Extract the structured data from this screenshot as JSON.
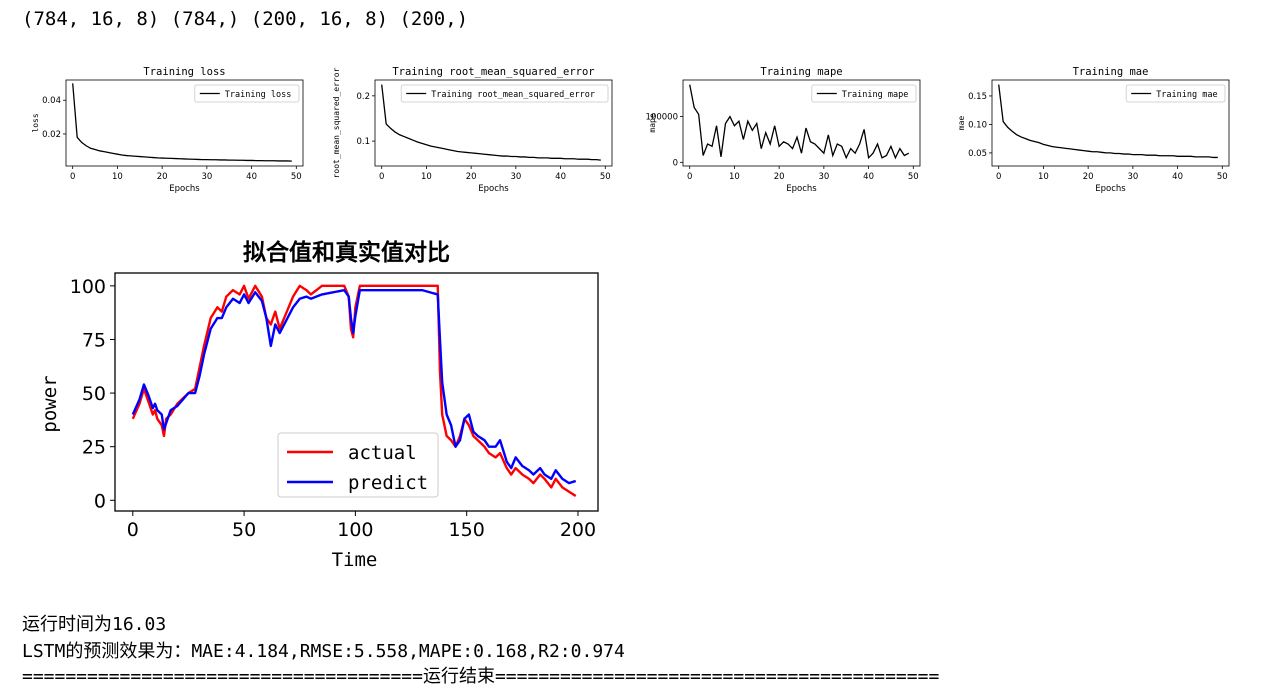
{
  "header_output": "(784, 16, 8) (784,) (200, 16, 8) (200,)",
  "training_charts": [
    {
      "type": "line",
      "title": "Training loss",
      "xlabel": "Epochs",
      "ylabel": "loss",
      "legend": "Training loss",
      "legend_position": "top-right",
      "xlim": [
        -1.5,
        51.5
      ],
      "ylim": [
        0.001,
        0.052
      ],
      "xticks": [
        "0",
        "10",
        "20",
        "30",
        "40",
        "50"
      ],
      "yticks": [
        0.02,
        0.04
      ],
      "ytick_labels": [
        "0.02",
        "0.04"
      ],
      "color": "#000000",
      "values": [
        0.05,
        0.018,
        0.015,
        0.013,
        0.0115,
        0.0108,
        0.01,
        0.0095,
        0.009,
        0.0085,
        0.008,
        0.0075,
        0.0072,
        0.007,
        0.0068,
        0.0066,
        0.0064,
        0.0062,
        0.006,
        0.0058,
        0.0057,
        0.0056,
        0.0055,
        0.0054,
        0.0053,
        0.0052,
        0.0051,
        0.005,
        0.0049,
        0.0048,
        0.0048,
        0.0047,
        0.0047,
        0.0046,
        0.0046,
        0.0045,
        0.0045,
        0.0044,
        0.0044,
        0.0043,
        0.0043,
        0.0042,
        0.0042,
        0.0041,
        0.0041,
        0.0041,
        0.004,
        0.004,
        0.004,
        0.0039
      ]
    },
    {
      "type": "line",
      "title": "Training root_mean_squared_error",
      "xlabel": "Epochs",
      "ylabel": "root_mean_squared_error",
      "legend": "Training root_mean_squared_error",
      "legend_position": "top-right",
      "xlim": [
        -1.5,
        51.5
      ],
      "ylim": [
        0.045,
        0.235
      ],
      "xticks": [
        "0",
        "10",
        "20",
        "30",
        "40",
        "50"
      ],
      "yticks": [
        0.1,
        0.2
      ],
      "ytick_labels": [
        "0.1",
        "0.2"
      ],
      "color": "#000000",
      "values": [
        0.225,
        0.138,
        0.128,
        0.12,
        0.114,
        0.11,
        0.106,
        0.102,
        0.098,
        0.095,
        0.092,
        0.089,
        0.087,
        0.085,
        0.083,
        0.081,
        0.079,
        0.077,
        0.076,
        0.075,
        0.074,
        0.073,
        0.072,
        0.071,
        0.07,
        0.069,
        0.068,
        0.067,
        0.067,
        0.066,
        0.066,
        0.065,
        0.065,
        0.064,
        0.064,
        0.063,
        0.063,
        0.063,
        0.062,
        0.062,
        0.062,
        0.061,
        0.061,
        0.061,
        0.06,
        0.06,
        0.06,
        0.059,
        0.059,
        0.058
      ]
    },
    {
      "type": "line",
      "title": "Training mape",
      "xlabel": "Epochs",
      "ylabel": "mape",
      "legend": "Training mape",
      "legend_position": "top-right",
      "xlim": [
        -1.5,
        51.5
      ],
      "ylim": [
        -8000,
        180000
      ],
      "xticks": [
        "0",
        "10",
        "20",
        "30",
        "40",
        "50"
      ],
      "yticks": [
        0,
        100000
      ],
      "ytick_labels": [
        "0",
        "100000"
      ],
      "color": "#000000",
      "values": [
        170000,
        120000,
        105000,
        15000,
        40000,
        35000,
        80000,
        12000,
        85000,
        100000,
        80000,
        90000,
        50000,
        90000,
        70000,
        85000,
        30000,
        65000,
        40000,
        80000,
        35000,
        45000,
        40000,
        30000,
        55000,
        20000,
        75000,
        45000,
        40000,
        30000,
        20000,
        60000,
        15000,
        40000,
        35000,
        10000,
        30000,
        20000,
        40000,
        72000,
        10000,
        20000,
        40000,
        10000,
        15000,
        35000,
        10000,
        30000,
        15000,
        20000
      ]
    },
    {
      "type": "line",
      "title": "Training mae",
      "xlabel": "Epochs",
      "ylabel": "mae",
      "legend": "Training mae",
      "legend_position": "top-right",
      "xlim": [
        -1.5,
        51.5
      ],
      "ylim": [
        0.027,
        0.178
      ],
      "xticks": [
        "0",
        "10",
        "20",
        "30",
        "40",
        "50"
      ],
      "yticks": [
        0.05,
        0.1,
        0.15
      ],
      "ytick_labels": [
        "0.05",
        "0.10",
        "0.15"
      ],
      "color": "#000000",
      "values": [
        0.17,
        0.105,
        0.095,
        0.088,
        0.082,
        0.078,
        0.075,
        0.072,
        0.07,
        0.068,
        0.065,
        0.063,
        0.061,
        0.06,
        0.059,
        0.058,
        0.057,
        0.056,
        0.055,
        0.054,
        0.053,
        0.052,
        0.052,
        0.051,
        0.05,
        0.05,
        0.049,
        0.049,
        0.048,
        0.048,
        0.047,
        0.047,
        0.047,
        0.046,
        0.046,
        0.046,
        0.045,
        0.045,
        0.045,
        0.045,
        0.044,
        0.044,
        0.044,
        0.044,
        0.043,
        0.043,
        0.043,
        0.043,
        0.042,
        0.042
      ]
    }
  ],
  "chart_data": {
    "type": "line",
    "title": "拟合值和真实值对比",
    "xlabel": "Time",
    "ylabel": "power",
    "xlim": [
      -8,
      209
    ],
    "ylim": [
      -5,
      106
    ],
    "xticks": [
      0,
      50,
      100,
      150,
      200
    ],
    "xtick_labels": [
      "0",
      "50",
      "100",
      "150",
      "200"
    ],
    "yticks": [
      0,
      25,
      50,
      75,
      100
    ],
    "ytick_labels": [
      "0",
      "25",
      "50",
      "75",
      "100"
    ],
    "legend_position": "lower-center",
    "series": [
      {
        "name": "actual",
        "color": "#ff0000",
        "keypoints": [
          [
            0,
            38
          ],
          [
            3,
            45
          ],
          [
            5,
            52
          ],
          [
            7,
            46
          ],
          [
            9,
            40
          ],
          [
            10,
            42
          ],
          [
            11,
            38
          ],
          [
            13,
            35
          ],
          [
            14,
            30
          ],
          [
            15,
            38
          ],
          [
            17,
            40
          ],
          [
            20,
            45
          ],
          [
            25,
            50
          ],
          [
            28,
            52
          ],
          [
            30,
            62
          ],
          [
            32,
            72
          ],
          [
            35,
            85
          ],
          [
            38,
            90
          ],
          [
            40,
            88
          ],
          [
            42,
            95
          ],
          [
            45,
            98
          ],
          [
            48,
            96
          ],
          [
            50,
            100
          ],
          [
            52,
            94
          ],
          [
            55,
            100
          ],
          [
            58,
            95
          ],
          [
            60,
            85
          ],
          [
            62,
            82
          ],
          [
            64,
            88
          ],
          [
            66,
            80
          ],
          [
            68,
            85
          ],
          [
            70,
            90
          ],
          [
            72,
            95
          ],
          [
            75,
            100
          ],
          [
            78,
            98
          ],
          [
            80,
            96
          ],
          [
            85,
            100
          ],
          [
            90,
            100
          ],
          [
            95,
            100
          ],
          [
            97,
            95
          ],
          [
            98,
            80
          ],
          [
            99,
            76
          ],
          [
            100,
            90
          ],
          [
            102,
            100
          ],
          [
            110,
            100
          ],
          [
            120,
            100
          ],
          [
            130,
            100
          ],
          [
            137,
            100
          ],
          [
            138,
            60
          ],
          [
            139,
            40
          ],
          [
            141,
            30
          ],
          [
            143,
            28
          ],
          [
            145,
            25
          ],
          [
            147,
            30
          ],
          [
            149,
            38
          ],
          [
            151,
            35
          ],
          [
            153,
            30
          ],
          [
            155,
            28
          ],
          [
            158,
            25
          ],
          [
            160,
            22
          ],
          [
            163,
            20
          ],
          [
            165,
            22
          ],
          [
            168,
            15
          ],
          [
            170,
            12
          ],
          [
            172,
            15
          ],
          [
            175,
            12
          ],
          [
            178,
            10
          ],
          [
            180,
            8
          ],
          [
            183,
            12
          ],
          [
            185,
            10
          ],
          [
            188,
            6
          ],
          [
            190,
            10
          ],
          [
            193,
            6
          ],
          [
            196,
            4
          ],
          [
            199,
            2
          ]
        ]
      },
      {
        "name": "predict",
        "color": "#0000ff",
        "keypoints": [
          [
            0,
            40
          ],
          [
            3,
            47
          ],
          [
            5,
            54
          ],
          [
            7,
            49
          ],
          [
            9,
            43
          ],
          [
            10,
            45
          ],
          [
            11,
            42
          ],
          [
            13,
            40
          ],
          [
            14,
            33
          ],
          [
            15,
            36
          ],
          [
            17,
            42
          ],
          [
            20,
            44
          ],
          [
            25,
            50
          ],
          [
            28,
            50
          ],
          [
            30,
            58
          ],
          [
            32,
            68
          ],
          [
            35,
            80
          ],
          [
            38,
            85
          ],
          [
            40,
            85
          ],
          [
            42,
            90
          ],
          [
            45,
            94
          ],
          [
            48,
            92
          ],
          [
            50,
            96
          ],
          [
            52,
            92
          ],
          [
            55,
            97
          ],
          [
            58,
            93
          ],
          [
            60,
            85
          ],
          [
            62,
            72
          ],
          [
            64,
            82
          ],
          [
            66,
            78
          ],
          [
            68,
            82
          ],
          [
            70,
            86
          ],
          [
            72,
            90
          ],
          [
            75,
            94
          ],
          [
            78,
            95
          ],
          [
            80,
            94
          ],
          [
            85,
            96
          ],
          [
            90,
            97
          ],
          [
            95,
            98
          ],
          [
            97,
            95
          ],
          [
            98,
            85
          ],
          [
            99,
            78
          ],
          [
            100,
            86
          ],
          [
            102,
            98
          ],
          [
            110,
            98
          ],
          [
            120,
            98
          ],
          [
            130,
            98
          ],
          [
            137,
            96
          ],
          [
            138,
            75
          ],
          [
            139,
            55
          ],
          [
            141,
            40
          ],
          [
            143,
            35
          ],
          [
            145,
            25
          ],
          [
            147,
            28
          ],
          [
            149,
            38
          ],
          [
            151,
            40
          ],
          [
            153,
            32
          ],
          [
            155,
            30
          ],
          [
            158,
            28
          ],
          [
            160,
            25
          ],
          [
            163,
            25
          ],
          [
            165,
            28
          ],
          [
            168,
            18
          ],
          [
            170,
            15
          ],
          [
            172,
            20
          ],
          [
            175,
            16
          ],
          [
            178,
            14
          ],
          [
            180,
            12
          ],
          [
            183,
            15
          ],
          [
            185,
            12
          ],
          [
            188,
            10
          ],
          [
            190,
            14
          ],
          [
            193,
            10
          ],
          [
            196,
            8
          ],
          [
            199,
            9
          ]
        ]
      }
    ]
  },
  "output_lines": {
    "runtime": "运行时间为16.03",
    "metrics": "LSTM的预测效果为：MAE:4.184,RMSE:5.558,MAPE:0.168,R2:0.974",
    "end_line": "=====================================运行结束========================================="
  }
}
